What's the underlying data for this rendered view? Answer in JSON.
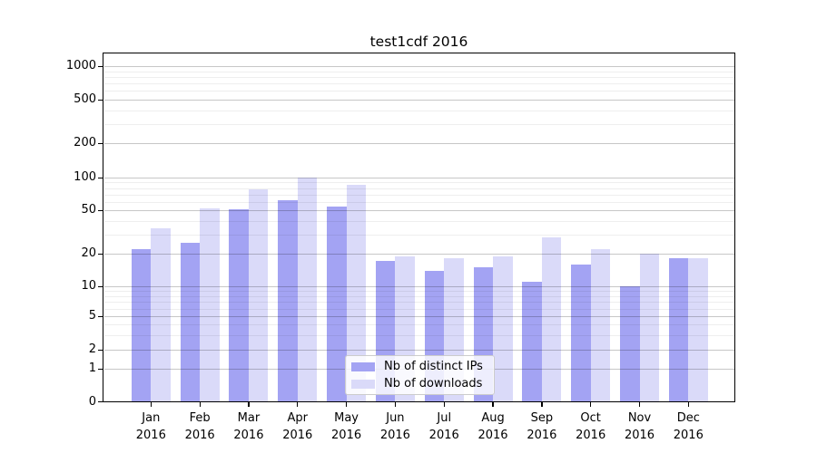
{
  "title": "test1cdf 2016",
  "chart_data": {
    "type": "bar",
    "title": "test1cdf 2016",
    "categories": [
      "Jan 2016",
      "Feb 2016",
      "Mar 2016",
      "Apr 2016",
      "May 2016",
      "Jun 2016",
      "Jul 2016",
      "Aug 2016",
      "Sep 2016",
      "Oct 2016",
      "Nov 2016",
      "Dec 2016"
    ],
    "series": [
      {
        "name": "Nb of distinct IPs",
        "color": "#a3a3f3",
        "values": [
          22,
          25,
          51,
          62,
          54,
          17,
          14,
          15,
          11,
          16,
          10,
          18
        ]
      },
      {
        "name": "Nb of downloads",
        "color": "#dadaf9",
        "values": [
          34,
          52,
          78,
          100,
          86,
          19,
          18,
          19,
          28,
          22,
          20,
          18
        ]
      }
    ],
    "yscale": "symlog",
    "yticks": [
      0,
      1,
      2,
      5,
      10,
      20,
      50,
      100,
      200,
      500,
      1000
    ],
    "ylim": [
      0,
      1300
    ],
    "xlabel": "",
    "ylabel": "",
    "grid": true,
    "legend_position": "lower center"
  },
  "legend": {
    "items": [
      {
        "label": "Nb of distinct IPs",
        "color": "#a3a3f3"
      },
      {
        "label": "Nb of downloads",
        "color": "#dadaf9"
      }
    ]
  },
  "y_axis": {
    "tick_labels": [
      "0",
      "1",
      "2",
      "5",
      "10",
      "20",
      "50",
      "100",
      "200",
      "500",
      "1000"
    ]
  },
  "x_axis": {
    "months": [
      {
        "line1": "Jan",
        "line2": "2016"
      },
      {
        "line1": "Feb",
        "line2": "2016"
      },
      {
        "line1": "Mar",
        "line2": "2016"
      },
      {
        "line1": "Apr",
        "line2": "2016"
      },
      {
        "line1": "May",
        "line2": "2016"
      },
      {
        "line1": "Jun",
        "line2": "2016"
      },
      {
        "line1": "Jul",
        "line2": "2016"
      },
      {
        "line1": "Aug",
        "line2": "2016"
      },
      {
        "line1": "Sep",
        "line2": "2016"
      },
      {
        "line1": "Oct",
        "line2": "2016"
      },
      {
        "line1": "Nov",
        "line2": "2016"
      },
      {
        "line1": "Dec",
        "line2": "2016"
      }
    ]
  }
}
